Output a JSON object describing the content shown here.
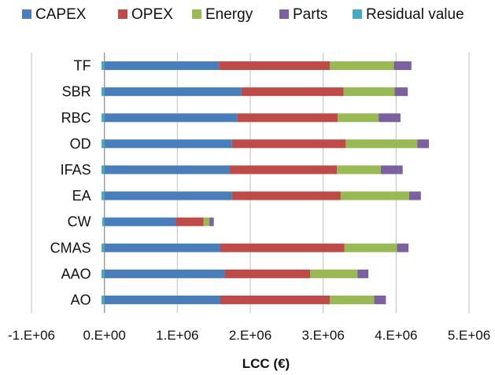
{
  "chart_data": {
    "type": "bar",
    "orientation": "horizontal",
    "stacked": true,
    "title": "",
    "xlabel": "LCC (€)",
    "ylabel": "",
    "xlim": [
      -1000000,
      5000000
    ],
    "xticks": [
      -1000000,
      0,
      1000000,
      2000000,
      3000000,
      4000000,
      5000000
    ],
    "xtick_labels": [
      "-1.E+06",
      "0.E+00",
      "1.E+06",
      "2.E+06",
      "3.E+06",
      "4.E+06",
      "5.E+06"
    ],
    "grid": "vertical",
    "legend_position": "top",
    "categories": [
      "AO",
      "AAO",
      "CMAS",
      "CW",
      "EA",
      "IFAS",
      "OD",
      "RBC",
      "SBR",
      "TF"
    ],
    "series": [
      {
        "name": "CAPEX",
        "color": "#4a7ebb",
        "values": [
          1590000,
          1650000,
          1590000,
          980000,
          1750000,
          1720000,
          1750000,
          1820000,
          1880000,
          1570000
        ]
      },
      {
        "name": "OPEX",
        "color": "#be4b48",
        "values": [
          1500000,
          1170000,
          1700000,
          380000,
          1490000,
          1470000,
          1560000,
          1380000,
          1400000,
          1520000
        ]
      },
      {
        "name": "Energy",
        "color": "#98b954",
        "values": [
          610000,
          650000,
          720000,
          80000,
          940000,
          600000,
          980000,
          560000,
          700000,
          880000
        ]
      },
      {
        "name": "Parts",
        "color": "#7d60a0",
        "values": [
          160000,
          150000,
          160000,
          60000,
          160000,
          300000,
          160000,
          300000,
          180000,
          240000
        ]
      },
      {
        "name": "Residual value",
        "color": "#46aac5",
        "values": [
          -40000,
          -40000,
          -40000,
          -30000,
          -40000,
          -40000,
          -40000,
          -40000,
          -40000,
          -40000
        ]
      }
    ]
  }
}
